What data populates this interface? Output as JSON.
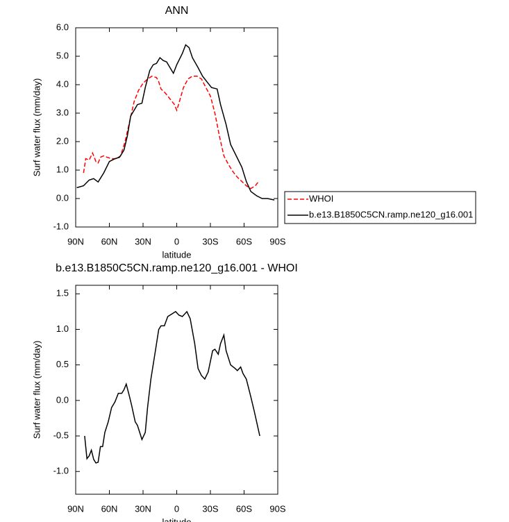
{
  "chart_data": [
    {
      "type": "line",
      "title": "ANN",
      "xlabel": "latitude",
      "ylabel": "Surf water flux (mm/day)",
      "xlim": [
        90,
        -90
      ],
      "xticks": [
        {
          "value": 90,
          "label": "90N"
        },
        {
          "value": 60,
          "label": "60N"
        },
        {
          "value": 30,
          "label": "30N"
        },
        {
          "value": 0,
          "label": "0"
        },
        {
          "value": -30,
          "label": "30S"
        },
        {
          "value": -60,
          "label": "60S"
        },
        {
          "value": -90,
          "label": "90S"
        }
      ],
      "ylim": [
        -1,
        6
      ],
      "yticks": [
        {
          "value": -1,
          "label": "-1.0"
        },
        {
          "value": 0,
          "label": "0.0"
        },
        {
          "value": 1,
          "label": "1.0"
        },
        {
          "value": 2,
          "label": "2.0"
        },
        {
          "value": 3,
          "label": "3.0"
        },
        {
          "value": 4,
          "label": "4.0"
        },
        {
          "value": 5,
          "label": "5.0"
        },
        {
          "value": 6,
          "label": "6.0"
        }
      ],
      "legend": "right",
      "series": [
        {
          "name": "WHOI",
          "color": "#ff0000",
          "dashed": true,
          "x": [
            83,
            81,
            78,
            75,
            72,
            70,
            68,
            65,
            62,
            58,
            54,
            50,
            46,
            42,
            38,
            34,
            30,
            26,
            22,
            18,
            16,
            14,
            10,
            6,
            2,
            0,
            -2,
            -6,
            -10,
            -14,
            -18,
            -22,
            -26,
            -30,
            -34,
            -38,
            -42,
            -46,
            -50,
            -54,
            -58,
            -62,
            -66,
            -70,
            -73
          ],
          "values": [
            0.9,
            1.4,
            1.35,
            1.6,
            1.3,
            1.25,
            1.45,
            1.5,
            1.45,
            1.4,
            1.4,
            1.5,
            2.0,
            2.7,
            3.4,
            3.8,
            4.05,
            4.2,
            4.3,
            4.25,
            4.1,
            3.85,
            3.7,
            3.5,
            3.3,
            3.1,
            3.35,
            3.9,
            4.2,
            4.3,
            4.3,
            4.2,
            3.9,
            3.6,
            3.0,
            2.2,
            1.5,
            1.2,
            0.95,
            0.75,
            0.6,
            0.45,
            0.35,
            0.45,
            0.6
          ]
        },
        {
          "name": "b.e13.B1850C5CN.ramp.ne120_g16.001",
          "color": "#000000",
          "dashed": false,
          "x": [
            89,
            83,
            78,
            74,
            70,
            65,
            60,
            55,
            51,
            47,
            44,
            41,
            38,
            35,
            31,
            28,
            24,
            21,
            18,
            15,
            12,
            9,
            6,
            3,
            0,
            -5,
            -8,
            -11,
            -14,
            -19,
            -23,
            -27,
            -31,
            -36,
            -39,
            -44,
            -48,
            -53,
            -58,
            -62,
            -66,
            -71,
            -76,
            -81,
            -87
          ],
          "values": [
            0.38,
            0.45,
            0.65,
            0.7,
            0.58,
            0.9,
            1.3,
            1.4,
            1.45,
            1.7,
            2.2,
            2.9,
            3.1,
            3.3,
            3.35,
            3.9,
            4.5,
            4.7,
            4.75,
            4.95,
            4.85,
            4.8,
            4.6,
            4.4,
            4.7,
            5.1,
            5.4,
            5.3,
            4.95,
            4.6,
            4.3,
            4.1,
            3.9,
            3.85,
            3.3,
            2.6,
            1.9,
            1.5,
            1.1,
            0.6,
            0.25,
            0.1,
            0.0,
            0.0,
            -0.05
          ]
        }
      ]
    },
    {
      "type": "line",
      "title": "b.e13.B1850C5CN.ramp.ne120_g16.001 - WHOI",
      "xlabel": "latitude",
      "ylabel": "Surf water flux (mm/day)",
      "xlim": [
        90,
        -90
      ],
      "xticks": [
        {
          "value": 90,
          "label": "90N"
        },
        {
          "value": 60,
          "label": "60N"
        },
        {
          "value": 30,
          "label": "30N"
        },
        {
          "value": 0,
          "label": "0"
        },
        {
          "value": -30,
          "label": "30S"
        },
        {
          "value": -60,
          "label": "60S"
        },
        {
          "value": -90,
          "label": "90S"
        }
      ],
      "ylim": [
        -1.32,
        1.62
      ],
      "yticks": [
        {
          "value": -1,
          "label": "-1.0"
        },
        -0.5,
        {
          "value": 0,
          "label": "0.0"
        },
        0.5,
        {
          "value": 1,
          "label": "1.0"
        },
        1.5
      ],
      "series": [
        {
          "color": "#000000",
          "dashed": false,
          "x": [
            82,
            80,
            78,
            76,
            74,
            72,
            70,
            68,
            66,
            64,
            61,
            58,
            55,
            52,
            49,
            47,
            45,
            42,
            40,
            37,
            35,
            32,
            31,
            28,
            26,
            23,
            19,
            16,
            14,
            11,
            8,
            4,
            1,
            -2,
            -5,
            -9,
            -12,
            -16,
            -19,
            -22,
            -25,
            -28,
            -32,
            -34,
            -37,
            -39,
            -42,
            -44,
            -48,
            -52,
            -54,
            -57,
            -59,
            -62,
            -66,
            -69,
            -74
          ],
          "values": [
            -0.5,
            -0.82,
            -0.78,
            -0.7,
            -0.83,
            -0.88,
            -0.87,
            -0.65,
            -0.65,
            -0.45,
            -0.3,
            -0.1,
            -0.02,
            0.1,
            0.1,
            0.15,
            0.23,
            0.05,
            -0.08,
            -0.3,
            -0.35,
            -0.5,
            -0.55,
            -0.45,
            -0.1,
            0.3,
            0.7,
            1.0,
            1.05,
            1.05,
            1.18,
            1.22,
            1.25,
            1.2,
            1.18,
            1.25,
            1.15,
            0.8,
            0.45,
            0.35,
            0.3,
            0.4,
            0.7,
            0.72,
            0.65,
            0.8,
            0.92,
            0.7,
            0.5,
            0.45,
            0.42,
            0.47,
            0.38,
            0.3,
            0.05,
            -0.15,
            -0.5
          ]
        }
      ]
    }
  ]
}
